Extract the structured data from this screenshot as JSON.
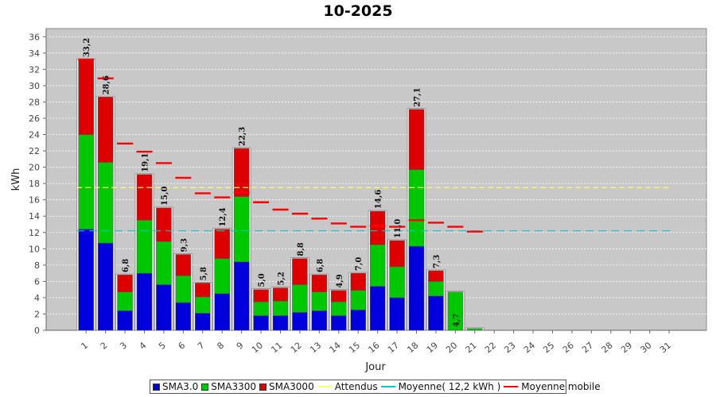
{
  "chart_data": {
    "type": "bar",
    "title": "10-2025",
    "xlabel": "Jour",
    "ylabel": "kWh",
    "ylim": [
      0,
      37
    ],
    "yticks": [
      0,
      2,
      4,
      6,
      8,
      10,
      12,
      14,
      16,
      18,
      20,
      22,
      24,
      26,
      28,
      30,
      32,
      34,
      36
    ],
    "grid": true,
    "stacked": true,
    "legend_position": "bottom",
    "categories": [
      "1",
      "2",
      "3",
      "4",
      "5",
      "6",
      "7",
      "8",
      "9",
      "10",
      "11",
      "12",
      "13",
      "14",
      "15",
      "16",
      "17",
      "18",
      "19",
      "20",
      "21",
      "22",
      "23",
      "24",
      "25",
      "26",
      "27",
      "28",
      "29",
      "30",
      "31"
    ],
    "series": [
      {
        "name": "SMA3.0",
        "color": "#0000dd",
        "values": [
          12.4,
          10.7,
          2.4,
          7.0,
          5.6,
          3.4,
          2.1,
          4.5,
          8.4,
          1.8,
          1.8,
          2.2,
          2.4,
          1.8,
          2.5,
          5.4,
          4.0,
          10.3,
          4.2,
          0,
          0,
          0,
          0,
          0,
          0,
          0,
          0,
          0,
          0,
          0,
          0
        ]
      },
      {
        "name": "SMA3300",
        "color": "#00c800",
        "values": [
          11.6,
          9.9,
          2.3,
          6.5,
          5.3,
          3.3,
          2.0,
          4.3,
          8.0,
          1.7,
          1.8,
          3.4,
          2.3,
          1.7,
          2.4,
          5.1,
          3.8,
          9.4,
          1.8,
          4.7,
          0.2,
          0,
          0,
          0,
          0,
          0,
          0,
          0,
          0,
          0,
          0
        ]
      },
      {
        "name": "SMA3000",
        "color": "#dd0000",
        "values": [
          9.2,
          8.0,
          2.1,
          5.6,
          4.1,
          2.6,
          1.7,
          3.6,
          5.9,
          1.5,
          1.6,
          3.2,
          2.1,
          1.4,
          2.1,
          4.1,
          3.2,
          7.4,
          1.3,
          0,
          0,
          0,
          0,
          0,
          0,
          0,
          0,
          0,
          0,
          0,
          0
        ]
      }
    ],
    "totals": [
      "33,2",
      "28,6",
      "6,8",
      "19,1",
      "15,0",
      "9,3",
      "5,8",
      "12,4",
      "22,3",
      "5,0",
      "5,2",
      "8,8",
      "6,8",
      "4,9",
      "7,0",
      "14,6",
      "11,0",
      "27,1",
      "7,3",
      "4,7",
      "",
      "",
      "",
      "",
      "",
      "",
      "",
      "",
      "",
      "",
      ""
    ],
    "total_values": [
      33.2,
      28.6,
      6.8,
      19.1,
      15.0,
      9.3,
      5.8,
      12.4,
      22.3,
      5.0,
      5.2,
      8.8,
      6.8,
      4.9,
      7.0,
      14.6,
      11.0,
      27.1,
      7.3,
      4.7,
      0.2,
      0,
      0,
      0,
      0,
      0,
      0,
      0,
      0,
      0,
      0
    ],
    "attendus": {
      "name": "Attendus",
      "value": 17.5,
      "color": "#ffff66"
    },
    "moyenne": {
      "name": "Moyenne( 12,2 kWh )",
      "value": 12.2,
      "color": "#00cccc"
    },
    "moyenne_mobile": {
      "name": "Moyenne mobile",
      "color": "#ff0000",
      "values": [
        33.2,
        30.9,
        22.9,
        21.9,
        20.5,
        18.7,
        16.8,
        16.3,
        16.9,
        15.7,
        14.8,
        14.3,
        13.7,
        13.1,
        12.7,
        12.8,
        12.7,
        13.5,
        13.2,
        12.7,
        12.1
      ]
    }
  }
}
